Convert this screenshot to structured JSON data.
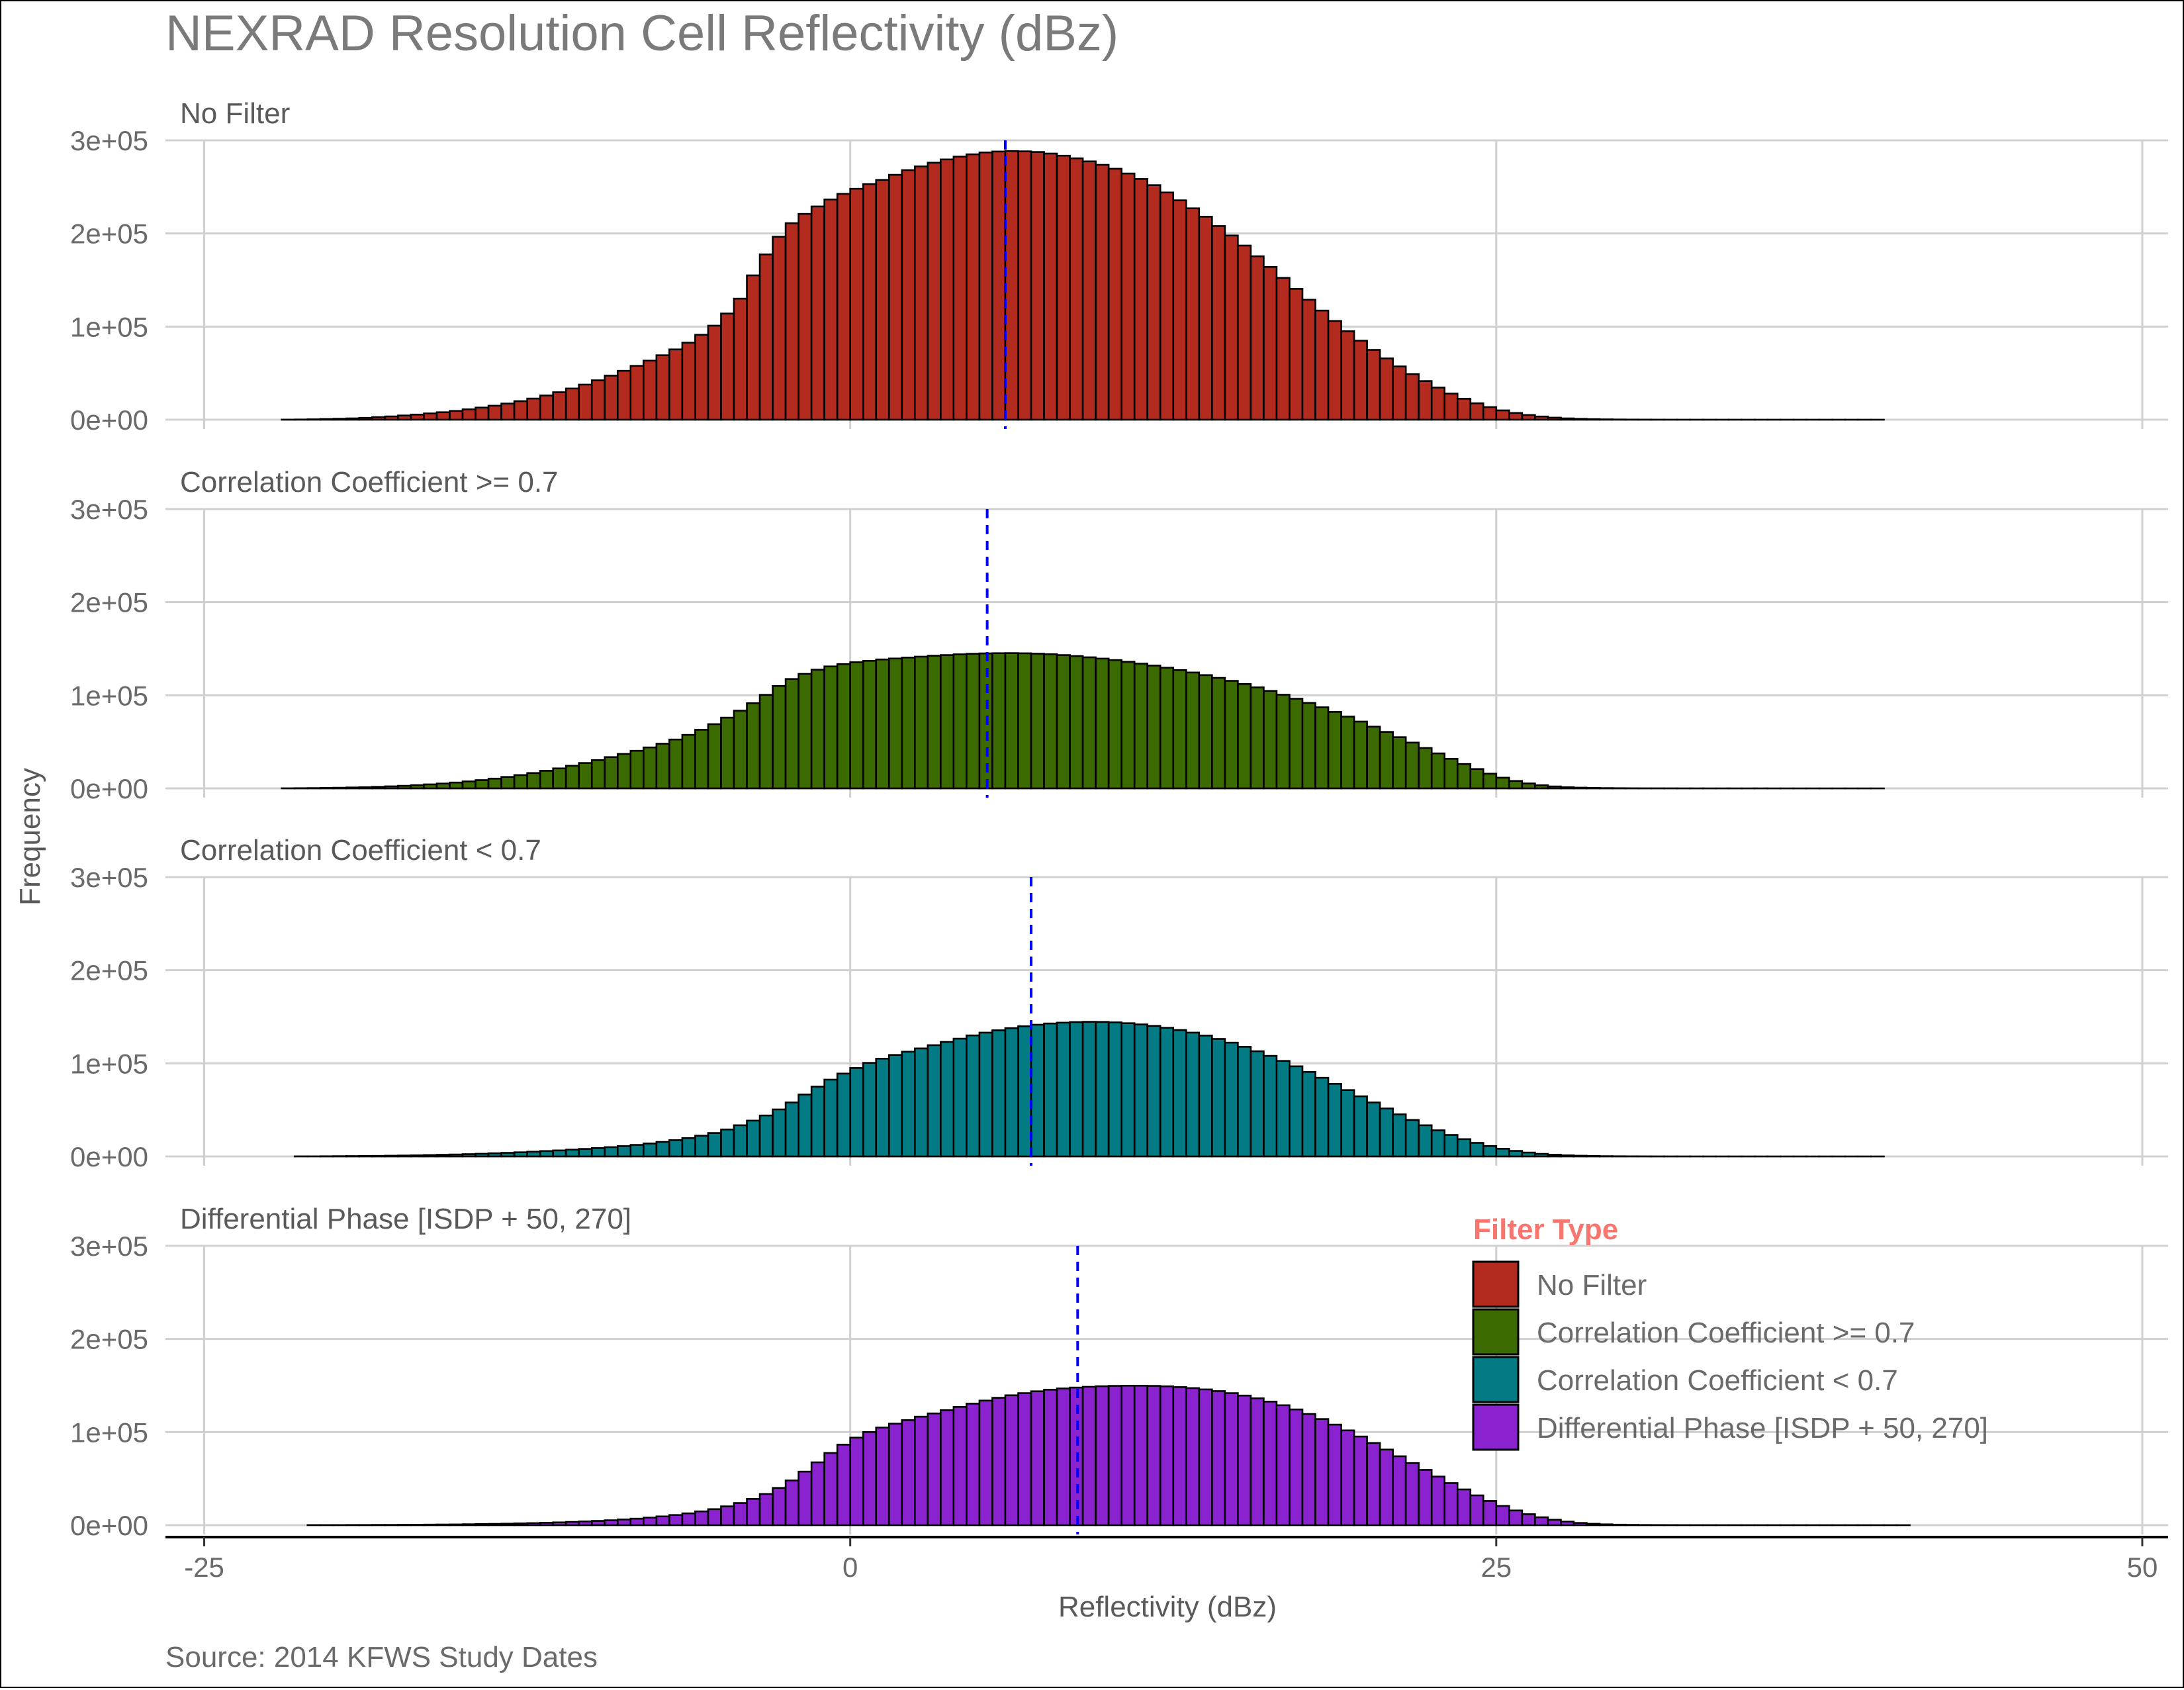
{
  "chart_data": {
    "type": "histogram",
    "title": "NEXRAD Resolution Cell Reflectivity (dBz)",
    "xlabel": "Reflectivity (dBz)",
    "ylabel": "Frequency",
    "caption": "Source: 2014 KFWS Study Dates",
    "xlim": [
      -26.5,
      51
    ],
    "ylim": [
      0,
      300000
    ],
    "x_ticks": [
      -25,
      0,
      25,
      50
    ],
    "x_tick_labels": [
      "-25",
      "0",
      "25",
      "50"
    ],
    "y_ticks": [
      0,
      100000,
      200000,
      300000
    ],
    "y_tick_labels": [
      "0e+00",
      "1e+05",
      "2e+05",
      "3e+05"
    ],
    "bin_width": 0.5,
    "bin_range": [
      -23.5,
      47.5
    ],
    "legend": {
      "title": "Filter Type",
      "title_color": "#F8766D",
      "position": "bottom-right",
      "entries": [
        {
          "label": "No Filter",
          "color": "#B22B1E"
        },
        {
          "label": "Correlation Coefficient >= 0.7",
          "color": "#3A6A00"
        },
        {
          "label": "Correlation Coefficient < 0.7",
          "color": "#027B84"
        },
        {
          "label": "Differential Phase [ISDP + 50, 270]",
          "color": "#8B22CF"
        }
      ]
    },
    "panels": [
      {
        "name": "No Filter",
        "color": "#B22B1E",
        "mean_line": 6,
        "bin_starts": [
          -23.5,
          -23,
          -22.5,
          -22,
          -21.5,
          -21,
          -20.5,
          -20,
          -19.5,
          -19,
          -18.5,
          -18,
          -17.5,
          -17,
          -16.5,
          -16,
          -15.5,
          -15,
          -14.5,
          -14,
          -13.5,
          -13,
          -12.5,
          -12,
          -11.5,
          -11,
          -10.5,
          -10,
          -9.5,
          -9,
          -8.5,
          -8,
          -7.5,
          -7,
          -6.5,
          -6,
          -5.5,
          -5,
          -4.5,
          -4,
          -3.5,
          -3,
          -2.5,
          -2,
          -1.5,
          -1,
          -0.5,
          0,
          0.5,
          1,
          1.5,
          2,
          2.5,
          3,
          3.5,
          4,
          4.5,
          5,
          5.5,
          6,
          6.5,
          7,
          7.5,
          8,
          8.5,
          9,
          9.5,
          10,
          10.5,
          11,
          11.5,
          12,
          12.5,
          13,
          13.5,
          14,
          14.5,
          15,
          15.5,
          16,
          16.5,
          17,
          17.5,
          18,
          18.5,
          19,
          19.5,
          20,
          20.5,
          21,
          21.5,
          22,
          22.5,
          23,
          23.5,
          24,
          24.5,
          25,
          25.5,
          26,
          26.5,
          27,
          27.5,
          28,
          28.5,
          29,
          29.5,
          30,
          30.5,
          31,
          31.5,
          32,
          32.5,
          33,
          33.5,
          34,
          34.5,
          35,
          35.5,
          36,
          36.5,
          37,
          37.5,
          38,
          38.5,
          39,
          39.5,
          40,
          40.5,
          41,
          41.5,
          42,
          42.5,
          43,
          43.5,
          44,
          44.5,
          45,
          45.5,
          46,
          46.5,
          47
        ],
        "frequency": [
          0,
          0,
          0,
          100,
          200,
          400,
          700,
          1000,
          1400,
          2000,
          2700,
          3500,
          4500,
          5500,
          6700,
          8000,
          9400,
          11100,
          13000,
          15000,
          17300,
          19900,
          22700,
          26000,
          29500,
          33500,
          37700,
          42300,
          47300,
          52500,
          57800,
          63400,
          69200,
          75500,
          82700,
          91200,
          101000,
          114000,
          130000,
          155000,
          177500,
          196500,
          211000,
          221000,
          229000,
          236500,
          242500,
          248000,
          253000,
          257500,
          263000,
          268000,
          272000,
          276000,
          279500,
          282500,
          285000,
          287000,
          288000,
          288500,
          288200,
          287500,
          285800,
          283500,
          280700,
          277400,
          273700,
          269500,
          264400,
          258500,
          251900,
          244000,
          235600,
          227000,
          218000,
          208000,
          197800,
          187000,
          175500,
          164000,
          152300,
          140500,
          128800,
          117200,
          106000,
          95000,
          84800,
          75000,
          65800,
          57200,
          48900,
          41500,
          34500,
          28000,
          22500,
          17600,
          13500,
          10000,
          7200,
          5000,
          3400,
          2200,
          1400,
          900,
          550,
          350,
          220,
          140,
          90,
          60,
          40,
          30,
          20,
          15,
          10,
          8,
          6,
          5,
          4,
          3,
          2,
          2,
          1,
          1,
          1,
          1,
          1,
          0,
          0,
          0,
          0,
          0,
          0,
          0,
          0,
          0,
          0,
          0,
          0,
          0,
          0,
          0
        ]
      },
      {
        "name": "Correlation Coefficient >= 0.7",
        "color": "#3A6A00",
        "mean_line": 5.3,
        "bin_starts": [
          -23.5,
          -23,
          -22.5,
          -22,
          -21.5,
          -21,
          -20.5,
          -20,
          -19.5,
          -19,
          -18.5,
          -18,
          -17.5,
          -17,
          -16.5,
          -16,
          -15.5,
          -15,
          -14.5,
          -14,
          -13.5,
          -13,
          -12.5,
          -12,
          -11.5,
          -11,
          -10.5,
          -10,
          -9.5,
          -9,
          -8.5,
          -8,
          -7.5,
          -7,
          -6.5,
          -6,
          -5.5,
          -5,
          -4.5,
          -4,
          -3.5,
          -3,
          -2.5,
          -2,
          -1.5,
          -1,
          -0.5,
          0,
          0.5,
          1,
          1.5,
          2,
          2.5,
          3,
          3.5,
          4,
          4.5,
          5,
          5.5,
          6,
          6.5,
          7,
          7.5,
          8,
          8.5,
          9,
          9.5,
          10,
          10.5,
          11,
          11.5,
          12,
          12.5,
          13,
          13.5,
          14,
          14.5,
          15,
          15.5,
          16,
          16.5,
          17,
          17.5,
          18,
          18.5,
          19,
          19.5,
          20,
          20.5,
          21,
          21.5,
          22,
          22.5,
          23,
          23.5,
          24,
          24.5,
          25,
          25.5,
          26,
          26.5,
          27,
          27.5,
          28,
          28.5,
          29,
          29.5,
          30,
          30.5,
          31,
          31.5,
          32,
          32.5,
          33,
          33.5,
          34,
          34.5,
          35,
          35.5,
          36,
          36.5,
          37,
          37.5,
          38,
          38.5,
          39,
          39.5,
          40,
          40.5,
          41,
          41.5,
          42,
          42.5,
          43,
          43.5,
          44,
          44.5,
          45,
          45.5,
          46,
          46.5,
          47
        ],
        "frequency": [
          0,
          0,
          0,
          100,
          200,
          300,
          500,
          700,
          1000,
          1300,
          1700,
          2200,
          2800,
          3500,
          4300,
          5200,
          6300,
          7500,
          8900,
          10500,
          12300,
          14300,
          16500,
          18900,
          21500,
          24300,
          27300,
          30400,
          33600,
          37000,
          40400,
          44000,
          48000,
          52500,
          57500,
          63000,
          69000,
          76000,
          83500,
          91500,
          100500,
          110000,
          117500,
          123000,
          127500,
          131000,
          133500,
          135500,
          137000,
          138500,
          139500,
          140500,
          141500,
          142500,
          143200,
          144000,
          144600,
          145000,
          145200,
          145300,
          145100,
          144700,
          144100,
          143200,
          142100,
          140800,
          139400,
          137800,
          136000,
          134000,
          131900,
          129600,
          127100,
          124500,
          121700,
          118700,
          115500,
          112100,
          108500,
          104700,
          100600,
          96300,
          91800,
          87100,
          82200,
          77100,
          71800,
          66300,
          60700,
          55000,
          49200,
          43400,
          37600,
          31800,
          26200,
          20800,
          15800,
          11500,
          8000,
          5300,
          3400,
          2100,
          1300,
          800,
          500,
          300,
          200,
          130,
          90,
          60,
          40,
          30,
          20,
          15,
          10,
          8,
          6,
          5,
          4,
          3,
          2,
          2,
          1,
          1,
          1,
          1,
          1,
          0,
          0,
          0,
          0,
          0,
          0,
          0,
          0,
          0,
          0,
          0,
          0,
          0,
          0,
          0
        ]
      },
      {
        "name": "Correlation Coefficient < 0.7",
        "color": "#027B84",
        "mean_line": 7,
        "bin_starts": [
          -23.5,
          -23,
          -22.5,
          -22,
          -21.5,
          -21,
          -20.5,
          -20,
          -19.5,
          -19,
          -18.5,
          -18,
          -17.5,
          -17,
          -16.5,
          -16,
          -15.5,
          -15,
          -14.5,
          -14,
          -13.5,
          -13,
          -12.5,
          -12,
          -11.5,
          -11,
          -10.5,
          -10,
          -9.5,
          -9,
          -8.5,
          -8,
          -7.5,
          -7,
          -6.5,
          -6,
          -5.5,
          -5,
          -4.5,
          -4,
          -3.5,
          -3,
          -2.5,
          -2,
          -1.5,
          -1,
          -0.5,
          0,
          0.5,
          1,
          1.5,
          2,
          2.5,
          3,
          3.5,
          4,
          4.5,
          5,
          5.5,
          6,
          6.5,
          7,
          7.5,
          8,
          8.5,
          9,
          9.5,
          10,
          10.5,
          11,
          11.5,
          12,
          12.5,
          13,
          13.5,
          14,
          14.5,
          15,
          15.5,
          16,
          16.5,
          17,
          17.5,
          18,
          18.5,
          19,
          19.5,
          20,
          20.5,
          21,
          21.5,
          22,
          22.5,
          23,
          23.5,
          24,
          24.5,
          25,
          25.5,
          26,
          26.5,
          27,
          27.5,
          28,
          28.5,
          29,
          29.5,
          30,
          30.5,
          31,
          31.5,
          32,
          32.5,
          33,
          33.5,
          34,
          34.5,
          35,
          35.5,
          36,
          36.5,
          37,
          37.5,
          38,
          38.5,
          39,
          39.5,
          40,
          40.5,
          41,
          41.5,
          42,
          42.5,
          43,
          43.5,
          44,
          44.5,
          45,
          45.5,
          46,
          46.5,
          47
        ],
        "frequency": [
          0,
          0,
          0,
          0,
          100,
          100,
          200,
          300,
          400,
          500,
          600,
          800,
          1000,
          1200,
          1500,
          1800,
          2100,
          2500,
          2900,
          3400,
          3900,
          4500,
          5100,
          5800,
          6500,
          7300,
          8100,
          9000,
          10000,
          11100,
          12400,
          13900,
          15600,
          17500,
          19700,
          22300,
          25200,
          29000,
          33500,
          38500,
          44000,
          50500,
          58000,
          66500,
          75000,
          82500,
          89000,
          95000,
          100500,
          105000,
          109000,
          112500,
          116000,
          119500,
          123000,
          126500,
          130000,
          133000,
          135500,
          137800,
          139800,
          141500,
          142800,
          143700,
          144300,
          144600,
          144500,
          144000,
          143100,
          141800,
          140200,
          138200,
          135800,
          133000,
          129800,
          126200,
          122200,
          117800,
          113000,
          108000,
          102600,
          96800,
          90800,
          84500,
          78000,
          71300,
          64600,
          58000,
          51500,
          45200,
          39200,
          33500,
          28100,
          23100,
          18600,
          14600,
          11200,
          8300,
          6000,
          4200,
          2800,
          1900,
          1200,
          800,
          500,
          300,
          200,
          130,
          90,
          60,
          40,
          30,
          20,
          15,
          10,
          8,
          6,
          5,
          4,
          3,
          2,
          2,
          1,
          1,
          1,
          1,
          1,
          0,
          0,
          0,
          0,
          0,
          0,
          0,
          0,
          0,
          0,
          0,
          0,
          0,
          0,
          0
        ]
      },
      {
        "name": "Differential Phase [ISDP + 50, 270]",
        "color": "#8B22CF",
        "mean_line": 8.8,
        "bin_starts": [
          -23.5,
          -23,
          -22.5,
          -22,
          -21.5,
          -21,
          -20.5,
          -20,
          -19.5,
          -19,
          -18.5,
          -18,
          -17.5,
          -17,
          -16.5,
          -16,
          -15.5,
          -15,
          -14.5,
          -14,
          -13.5,
          -13,
          -12.5,
          -12,
          -11.5,
          -11,
          -10.5,
          -10,
          -9.5,
          -9,
          -8.5,
          -8,
          -7.5,
          -7,
          -6.5,
          -6,
          -5.5,
          -5,
          -4.5,
          -4,
          -3.5,
          -3,
          -2.5,
          -2,
          -1.5,
          -1,
          -0.5,
          0,
          0.5,
          1,
          1.5,
          2,
          2.5,
          3,
          3.5,
          4,
          4.5,
          5,
          5.5,
          6,
          6.5,
          7,
          7.5,
          8,
          8.5,
          9,
          9.5,
          10,
          10.5,
          11,
          11.5,
          12,
          12.5,
          13,
          13.5,
          14,
          14.5,
          15,
          15.5,
          16,
          16.5,
          17,
          17.5,
          18,
          18.5,
          19,
          19.5,
          20,
          20.5,
          21,
          21.5,
          22,
          22.5,
          23,
          23.5,
          24,
          24.5,
          25,
          25.5,
          26,
          26.5,
          27,
          27.5,
          28,
          28.5,
          29,
          29.5,
          30,
          30.5,
          31,
          31.5,
          32,
          32.5,
          33,
          33.5,
          34,
          34.5,
          35,
          35.5,
          36,
          36.5,
          37,
          37.5,
          38,
          38.5,
          39,
          39.5,
          40,
          40.5,
          41,
          41.5,
          42,
          42.5,
          43,
          43.5,
          44,
          44.5,
          45,
          45.5,
          46,
          46.5,
          47
        ],
        "frequency": [
          0,
          0,
          0,
          0,
          0,
          100,
          100,
          100,
          200,
          200,
          300,
          300,
          400,
          500,
          600,
          700,
          800,
          1000,
          1200,
          1400,
          1600,
          1900,
          2200,
          2600,
          3000,
          3500,
          4000,
          4600,
          5300,
          6100,
          7000,
          8100,
          9400,
          10900,
          12700,
          14800,
          17200,
          20200,
          23800,
          28200,
          33500,
          40000,
          48000,
          57500,
          67500,
          77500,
          86500,
          94000,
          100000,
          104800,
          109000,
          112800,
          116500,
          120000,
          123500,
          127000,
          130500,
          133800,
          136800,
          139500,
          141800,
          143800,
          145500,
          146800,
          147800,
          148600,
          149200,
          149600,
          149800,
          149800,
          149600,
          149100,
          148300,
          147200,
          145800,
          144000,
          141800,
          139200,
          136200,
          132700,
          128800,
          124300,
          119400,
          114000,
          108000,
          101800,
          95200,
          88300,
          81200,
          74000,
          66700,
          59400,
          52200,
          45200,
          38400,
          32000,
          26000,
          20600,
          15800,
          11800,
          8500,
          5800,
          3800,
          2400,
          1500,
          900,
          550,
          350,
          220,
          140,
          90,
          60,
          40,
          30,
          20,
          15,
          10,
          8,
          6,
          5,
          4,
          3,
          2,
          2,
          1,
          1,
          1,
          1,
          1,
          0,
          0,
          0,
          0,
          0,
          0,
          0,
          0,
          0,
          0,
          0,
          0,
          0,
          0,
          0
        ]
      }
    ]
  }
}
